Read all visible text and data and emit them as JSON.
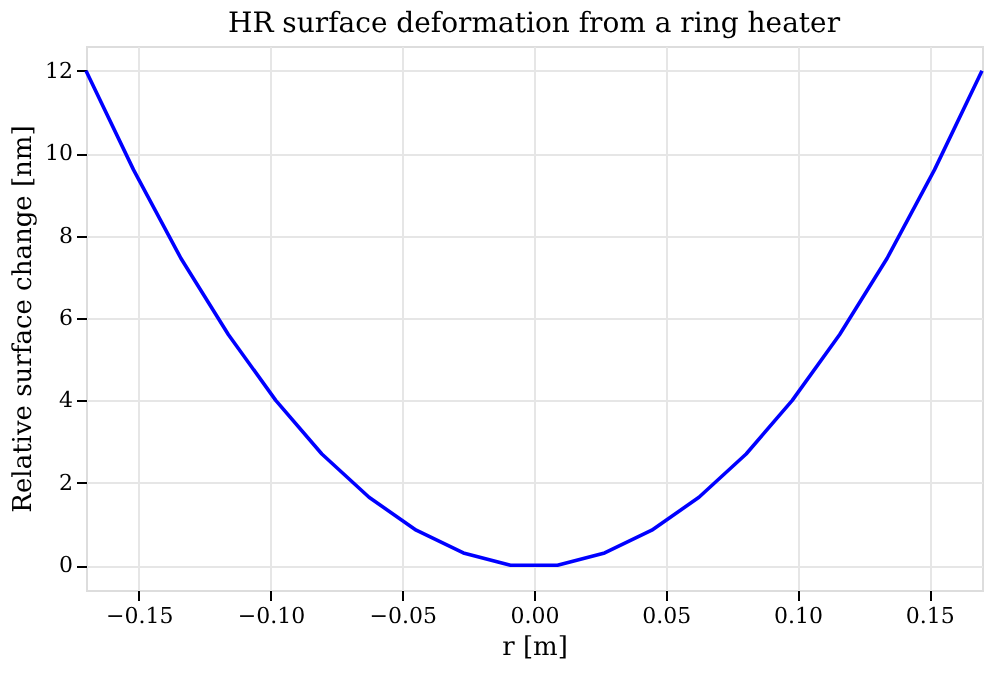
{
  "chart_data": {
    "type": "line",
    "title": "HR surface deformation from a ring heater",
    "xlabel": "r [m]",
    "ylabel": "Relative surface change [nm]",
    "x": [
      -0.17,
      -0.152,
      -0.134,
      -0.116,
      -0.098,
      -0.0805,
      -0.0626,
      -0.0447,
      -0.0268,
      -0.0089,
      0.0089,
      0.0268,
      0.0447,
      0.0626,
      0.0805,
      0.098,
      0.116,
      0.134,
      0.152,
      0.17
    ],
    "series": [
      {
        "color": "#0000ff",
        "values": [
          12.0,
          9.6,
          7.45,
          5.6,
          4.0,
          2.7,
          1.65,
          0.85,
          0.3,
          0.0,
          0.0,
          0.3,
          0.85,
          1.65,
          2.7,
          4.0,
          5.6,
          7.45,
          9.6,
          12.0
        ]
      }
    ],
    "xlim": [
      -0.17,
      0.17
    ],
    "ylim": [
      -0.6,
      12.6
    ],
    "xticks": [
      {
        "value": -0.15,
        "label": "−0.15"
      },
      {
        "value": -0.1,
        "label": "−0.10"
      },
      {
        "value": -0.05,
        "label": "−0.05"
      },
      {
        "value": 0,
        "label": "0.00"
      },
      {
        "value": 0.05,
        "label": "0.05"
      },
      {
        "value": 0.1,
        "label": "0.10"
      },
      {
        "value": 0.15,
        "label": "0.15"
      }
    ],
    "yticks": [
      0,
      2,
      4,
      6,
      8,
      10,
      12
    ],
    "grid": true,
    "line_style": "solid",
    "marker": "none"
  }
}
